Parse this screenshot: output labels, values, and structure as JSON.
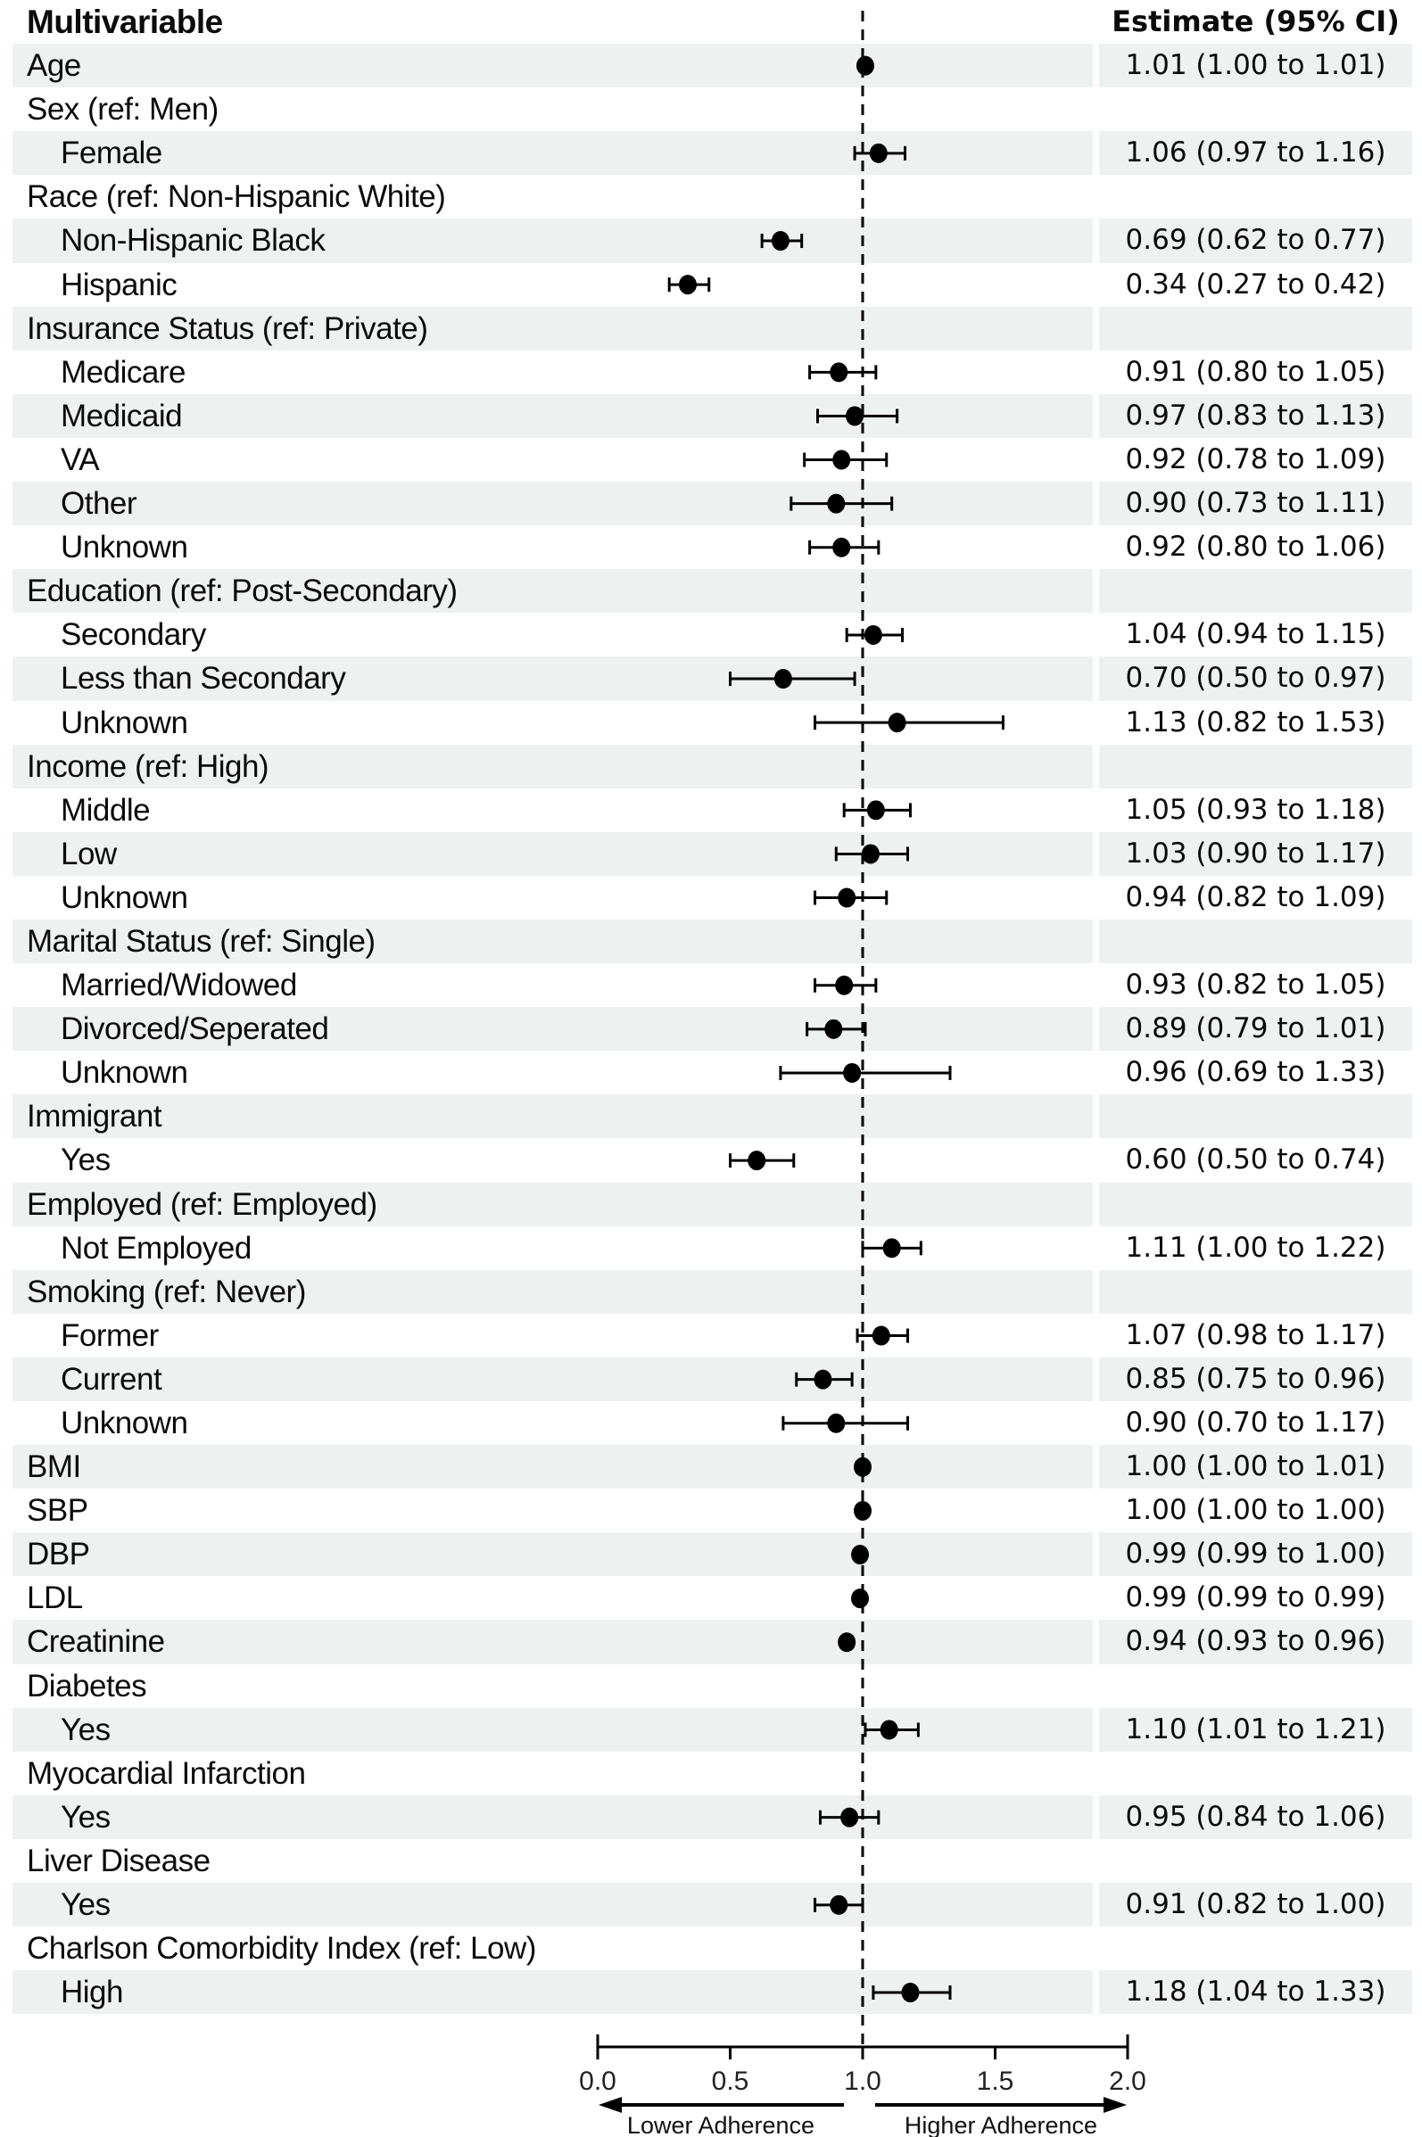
{
  "header": {
    "left": "Multivariable",
    "right": "Estimate (95% CI)"
  },
  "chart_data": {
    "type": "scatter",
    "variant": "forest-plot",
    "title": "Multivariable",
    "value_column_header": "Estimate (95% CI)",
    "axis": {
      "min": 0.0,
      "max": 2.0,
      "ref_line": 1.0,
      "ticks": [
        0.0,
        0.5,
        1.0,
        1.5,
        2.0
      ],
      "tick_labels": [
        "0.0",
        "0.5",
        "1.0",
        "1.5",
        "2.0"
      ]
    },
    "arrows": {
      "left": "Lower Adherence",
      "right": "Higher Adherence"
    },
    "colors": {
      "stripe": "#edf1f0",
      "marker": "#000000",
      "ref_line": "#000000",
      "axis": "#000000"
    },
    "rows": [
      {
        "label": "Age",
        "indent": 0,
        "estimate": "1.01 (1.00 to 1.01)",
        "point": 1.01,
        "lo": 1.0,
        "hi": 1.01
      },
      {
        "label": "Sex (ref: Men)",
        "indent": 0,
        "estimate": null,
        "point": null,
        "lo": null,
        "hi": null
      },
      {
        "label": "Female",
        "indent": 1,
        "estimate": "1.06 (0.97 to 1.16)",
        "point": 1.06,
        "lo": 0.97,
        "hi": 1.16
      },
      {
        "label": "Race (ref: Non-Hispanic White)",
        "indent": 0,
        "estimate": null,
        "point": null,
        "lo": null,
        "hi": null
      },
      {
        "label": "Non-Hispanic Black",
        "indent": 1,
        "estimate": "0.69 (0.62 to 0.77)",
        "point": 0.69,
        "lo": 0.62,
        "hi": 0.77
      },
      {
        "label": "Hispanic",
        "indent": 1,
        "estimate": "0.34 (0.27 to 0.42)",
        "point": 0.34,
        "lo": 0.27,
        "hi": 0.42
      },
      {
        "label": "Insurance Status (ref: Private)",
        "indent": 0,
        "estimate": null,
        "point": null,
        "lo": null,
        "hi": null
      },
      {
        "label": "Medicare",
        "indent": 1,
        "estimate": "0.91 (0.80 to 1.05)",
        "point": 0.91,
        "lo": 0.8,
        "hi": 1.05
      },
      {
        "label": "Medicaid",
        "indent": 1,
        "estimate": "0.97 (0.83 to 1.13)",
        "point": 0.97,
        "lo": 0.83,
        "hi": 1.13
      },
      {
        "label": "VA",
        "indent": 1,
        "estimate": "0.92 (0.78 to 1.09)",
        "point": 0.92,
        "lo": 0.78,
        "hi": 1.09
      },
      {
        "label": "Other",
        "indent": 1,
        "estimate": "0.90 (0.73 to 1.11)",
        "point": 0.9,
        "lo": 0.73,
        "hi": 1.11
      },
      {
        "label": "Unknown",
        "indent": 1,
        "estimate": "0.92 (0.80 to 1.06)",
        "point": 0.92,
        "lo": 0.8,
        "hi": 1.06
      },
      {
        "label": "Education (ref: Post-Secondary)",
        "indent": 0,
        "estimate": null,
        "point": null,
        "lo": null,
        "hi": null
      },
      {
        "label": "Secondary",
        "indent": 1,
        "estimate": "1.04 (0.94 to 1.15)",
        "point": 1.04,
        "lo": 0.94,
        "hi": 1.15
      },
      {
        "label": "Less than Secondary",
        "indent": 1,
        "estimate": "0.70 (0.50 to 0.97)",
        "point": 0.7,
        "lo": 0.5,
        "hi": 0.97
      },
      {
        "label": "Unknown",
        "indent": 1,
        "estimate": "1.13 (0.82 to 1.53)",
        "point": 1.13,
        "lo": 0.82,
        "hi": 1.53
      },
      {
        "label": "Income (ref: High)",
        "indent": 0,
        "estimate": null,
        "point": null,
        "lo": null,
        "hi": null
      },
      {
        "label": "Middle",
        "indent": 1,
        "estimate": "1.05 (0.93 to 1.18)",
        "point": 1.05,
        "lo": 0.93,
        "hi": 1.18
      },
      {
        "label": "Low",
        "indent": 1,
        "estimate": "1.03 (0.90 to 1.17)",
        "point": 1.03,
        "lo": 0.9,
        "hi": 1.17
      },
      {
        "label": "Unknown",
        "indent": 1,
        "estimate": "0.94 (0.82 to 1.09)",
        "point": 0.94,
        "lo": 0.82,
        "hi": 1.09
      },
      {
        "label": "Marital Status (ref: Single)",
        "indent": 0,
        "estimate": null,
        "point": null,
        "lo": null,
        "hi": null
      },
      {
        "label": "Married/Widowed",
        "indent": 1,
        "estimate": "0.93 (0.82 to 1.05)",
        "point": 0.93,
        "lo": 0.82,
        "hi": 1.05
      },
      {
        "label": "Divorced/Seperated",
        "indent": 1,
        "estimate": "0.89 (0.79 to 1.01)",
        "point": 0.89,
        "lo": 0.79,
        "hi": 1.01
      },
      {
        "label": "Unknown",
        "indent": 1,
        "estimate": "0.96 (0.69 to 1.33)",
        "point": 0.96,
        "lo": 0.69,
        "hi": 1.33
      },
      {
        "label": "Immigrant",
        "indent": 0,
        "estimate": null,
        "point": null,
        "lo": null,
        "hi": null
      },
      {
        "label": "Yes",
        "indent": 1,
        "estimate": "0.60 (0.50 to 0.74)",
        "point": 0.6,
        "lo": 0.5,
        "hi": 0.74
      },
      {
        "label": "Employed (ref: Employed)",
        "indent": 0,
        "estimate": null,
        "point": null,
        "lo": null,
        "hi": null
      },
      {
        "label": "Not Employed",
        "indent": 1,
        "estimate": "1.11 (1.00 to 1.22)",
        "point": 1.11,
        "lo": 1.0,
        "hi": 1.22
      },
      {
        "label": "Smoking (ref: Never)",
        "indent": 0,
        "estimate": null,
        "point": null,
        "lo": null,
        "hi": null
      },
      {
        "label": "Former",
        "indent": 1,
        "estimate": "1.07 (0.98 to 1.17)",
        "point": 1.07,
        "lo": 0.98,
        "hi": 1.17
      },
      {
        "label": "Current",
        "indent": 1,
        "estimate": "0.85 (0.75 to 0.96)",
        "point": 0.85,
        "lo": 0.75,
        "hi": 0.96
      },
      {
        "label": "Unknown",
        "indent": 1,
        "estimate": "0.90 (0.70 to 1.17)",
        "point": 0.9,
        "lo": 0.7,
        "hi": 1.17
      },
      {
        "label": "BMI",
        "indent": 0,
        "estimate": "1.00 (1.00 to 1.01)",
        "point": 1.0,
        "lo": 1.0,
        "hi": 1.01
      },
      {
        "label": "SBP",
        "indent": 0,
        "estimate": "1.00 (1.00 to 1.00)",
        "point": 1.0,
        "lo": 1.0,
        "hi": 1.0
      },
      {
        "label": "DBP",
        "indent": 0,
        "estimate": "0.99 (0.99 to 1.00)",
        "point": 0.99,
        "lo": 0.99,
        "hi": 1.0
      },
      {
        "label": "LDL",
        "indent": 0,
        "estimate": "0.99 (0.99 to 0.99)",
        "point": 0.99,
        "lo": 0.99,
        "hi": 0.99
      },
      {
        "label": "Creatinine",
        "indent": 0,
        "estimate": "0.94 (0.93 to 0.96)",
        "point": 0.94,
        "lo": 0.93,
        "hi": 0.96
      },
      {
        "label": "Diabetes",
        "indent": 0,
        "estimate": null,
        "point": null,
        "lo": null,
        "hi": null
      },
      {
        "label": "Yes",
        "indent": 1,
        "estimate": "1.10 (1.01 to 1.21)",
        "point": 1.1,
        "lo": 1.01,
        "hi": 1.21
      },
      {
        "label": "Myocardial Infarction",
        "indent": 0,
        "estimate": null,
        "point": null,
        "lo": null,
        "hi": null
      },
      {
        "label": "Yes",
        "indent": 1,
        "estimate": "0.95 (0.84 to 1.06)",
        "point": 0.95,
        "lo": 0.84,
        "hi": 1.06
      },
      {
        "label": "Liver Disease",
        "indent": 0,
        "estimate": null,
        "point": null,
        "lo": null,
        "hi": null
      },
      {
        "label": "Yes",
        "indent": 1,
        "estimate": "0.91 (0.82 to 1.00)",
        "point": 0.91,
        "lo": 0.82,
        "hi": 1.0
      },
      {
        "label": "Charlson Comorbidity Index (ref: Low)",
        "indent": 0,
        "estimate": null,
        "point": null,
        "lo": null,
        "hi": null
      },
      {
        "label": "High",
        "indent": 1,
        "estimate": "1.18 (1.04 to 1.33)",
        "point": 1.18,
        "lo": 1.04,
        "hi": 1.33
      }
    ]
  }
}
